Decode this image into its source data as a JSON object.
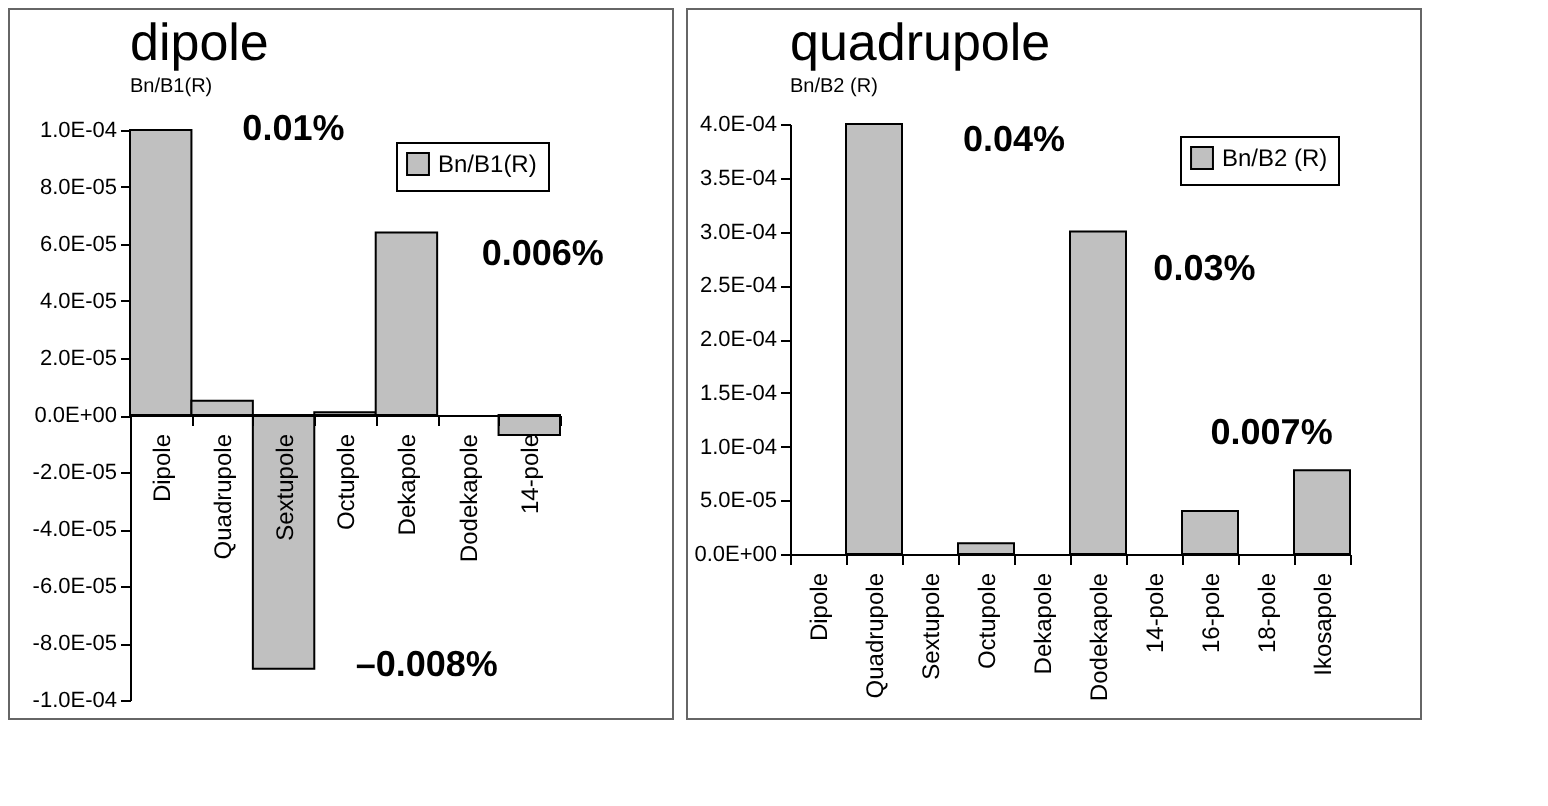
{
  "chart_data": [
    {
      "type": "bar",
      "title": "dipole",
      "subtitle": "Bn/B1(R)",
      "categories": [
        "Dipole",
        "Quadrupole",
        "Sextupole",
        "Octupole",
        "Dekapole",
        "Dodekapole",
        "14-pole"
      ],
      "series": [
        {
          "name": "Bn/B1(R)",
          "color": "#c0c0c0",
          "values": [
            0.0001,
            5e-06,
            -8.9e-05,
            1e-06,
            6.4e-05,
            0,
            -7e-06
          ]
        }
      ],
      "ylim": [
        -0.0001,
        0.0001
      ],
      "yticks": [
        {
          "value": -0.0001,
          "label": "-1.0E-04"
        },
        {
          "value": -8e-05,
          "label": "-8.0E-05"
        },
        {
          "value": -6e-05,
          "label": "-6.0E-05"
        },
        {
          "value": -4e-05,
          "label": "-4.0E-05"
        },
        {
          "value": -2e-05,
          "label": "-2.0E-05"
        },
        {
          "value": 0,
          "label": "0.0E+00"
        },
        {
          "value": 2e-05,
          "label": "2.0E-05"
        },
        {
          "value": 4e-05,
          "label": "4.0E-05"
        },
        {
          "value": 6e-05,
          "label": "6.0E-05"
        },
        {
          "value": 8e-05,
          "label": "8.0E-05"
        },
        {
          "value": 0.0001,
          "label": "1.0E-04"
        }
      ],
      "annotations": [
        "0.01%",
        "0.006%",
        "–0.008%"
      ],
      "legend": "top right",
      "grid": false
    },
    {
      "type": "bar",
      "title": "quadrupole",
      "subtitle": "Bn/B2 (R)",
      "categories": [
        "Dipole",
        "Quadrupole",
        "Sextupole",
        "Octupole",
        "Dekapole",
        "Dodekapole",
        "14-pole",
        "16-pole",
        "18-pole",
        "Ikosapole"
      ],
      "series": [
        {
          "name": "Bn/B2 (R)",
          "color": "#c0c0c0",
          "values": [
            0,
            0.0004,
            0,
            1e-05,
            0,
            0.0003,
            0,
            4e-05,
            0,
            7.8e-05
          ]
        }
      ],
      "ylim": [
        0,
        0.0004
      ],
      "yticks": [
        {
          "value": 0,
          "label": "0.0E+00"
        },
        {
          "value": 5e-05,
          "label": "5.0E-05"
        },
        {
          "value": 0.0001,
          "label": "1.0E-04"
        },
        {
          "value": 0.00015,
          "label": "1.5E-04"
        },
        {
          "value": 0.0002,
          "label": "2.0E-04"
        },
        {
          "value": 0.00025,
          "label": "2.5E-04"
        },
        {
          "value": 0.0003,
          "label": "3.0E-04"
        },
        {
          "value": 0.00035,
          "label": "3.5E-04"
        },
        {
          "value": 0.0004,
          "label": "4.0E-04"
        }
      ],
      "annotations": [
        "0.04%",
        "0.03%",
        "0.007%"
      ],
      "legend": "top right",
      "grid": false
    }
  ]
}
